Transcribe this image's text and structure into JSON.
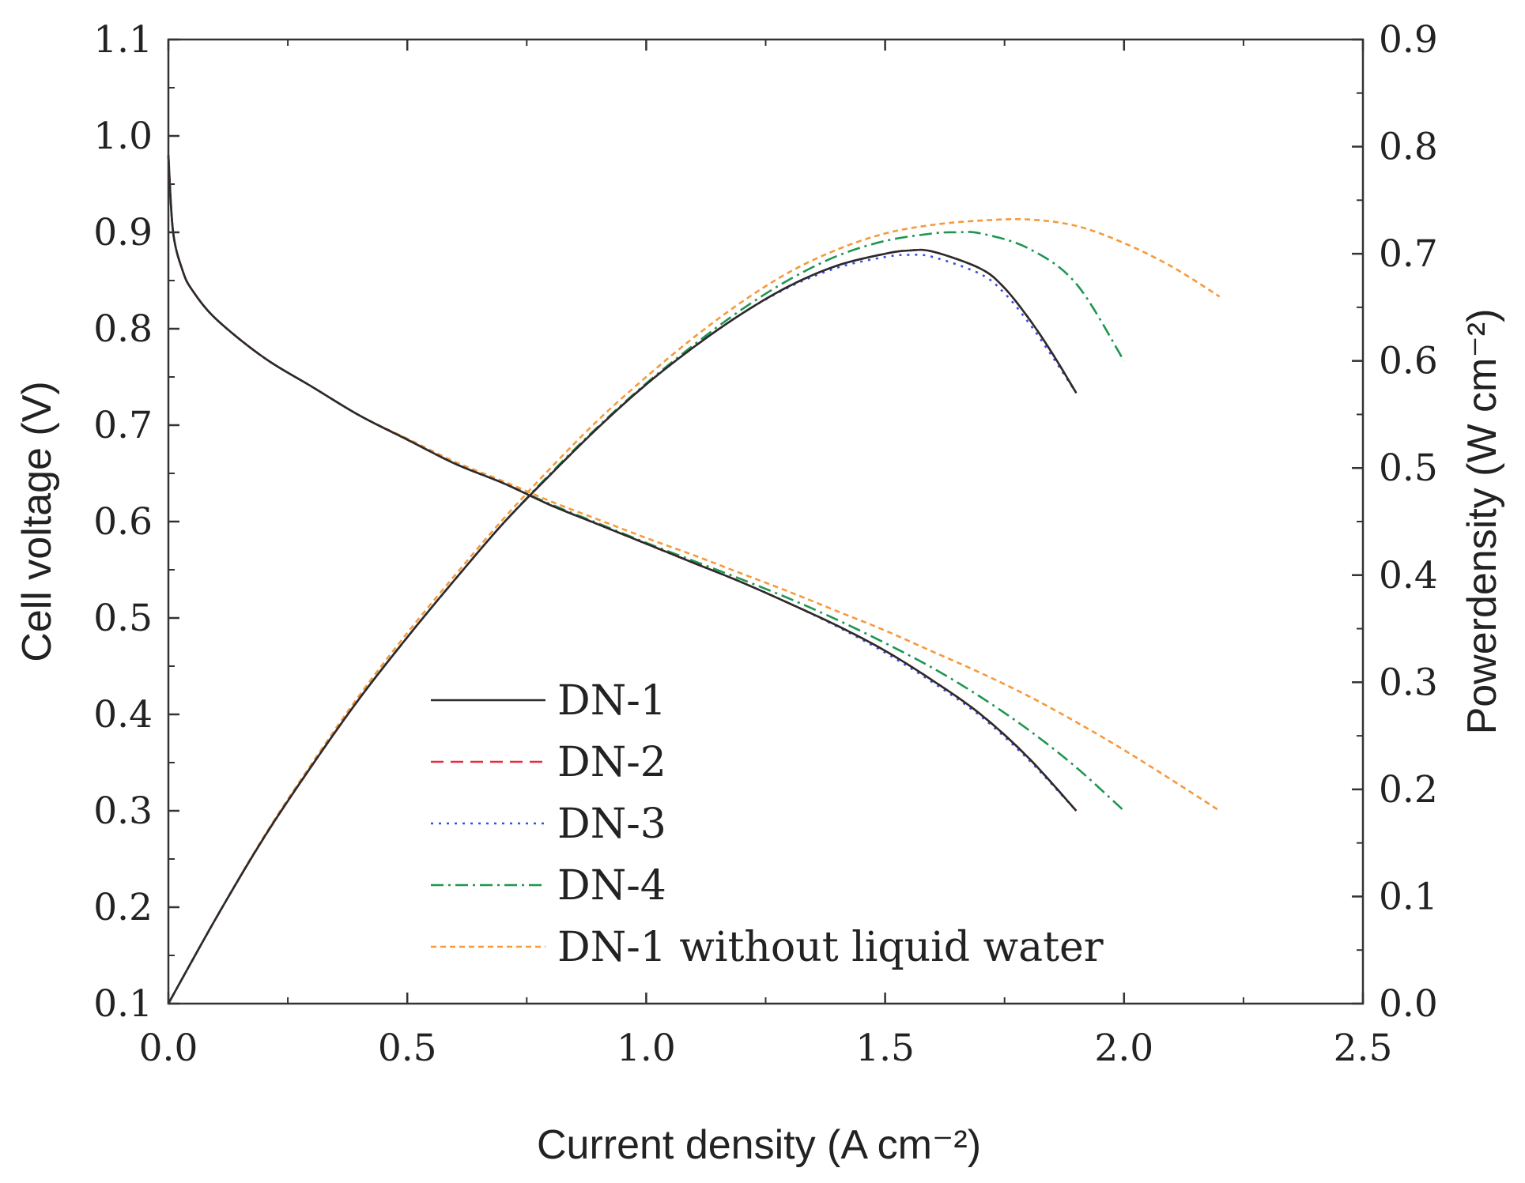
{
  "chart_data": {
    "type": "line",
    "title": "",
    "xlabel": "Current density (A cm⁻²)",
    "ylabel_left": "Cell voltage (V)",
    "ylabel_right": "Powerdensity (W cm⁻²)",
    "xlim": [
      0.0,
      2.5
    ],
    "ylim_left": [
      0.1,
      1.1
    ],
    "ylim_right": [
      0.0,
      0.9
    ],
    "x_ticks": [
      "0.0",
      "0.5",
      "1.0",
      "1.5",
      "2.0",
      "2.5"
    ],
    "y_left_ticks": [
      "0.1",
      "0.2",
      "0.3",
      "0.4",
      "0.5",
      "0.6",
      "0.7",
      "0.8",
      "0.9",
      "1.0",
      "1.1"
    ],
    "y_right_ticks": [
      "0.0",
      "0.1",
      "0.2",
      "0.3",
      "0.4",
      "0.5",
      "0.6",
      "0.7",
      "0.8",
      "0.9"
    ],
    "grid": false,
    "legend_position": "bottom-left",
    "series": [
      {
        "name": "DN-1",
        "color": "#2b2b2b",
        "dash": "solid",
        "polarization": {
          "x": [
            0.0,
            0.01,
            0.03,
            0.05,
            0.1,
            0.2,
            0.3,
            0.4,
            0.5,
            0.6,
            0.7,
            0.8,
            0.9,
            1.0,
            1.1,
            1.2,
            1.3,
            1.4,
            1.5,
            1.6,
            1.7,
            1.8,
            1.9
          ],
          "voltage": [
            0.98,
            0.9,
            0.86,
            0.84,
            0.81,
            0.77,
            0.74,
            0.71,
            0.685,
            0.66,
            0.64,
            0.617,
            0.597,
            0.577,
            0.557,
            0.537,
            0.515,
            0.492,
            0.466,
            0.435,
            0.4,
            0.355,
            0.3
          ]
        },
        "power": {
          "x": [
            0.0,
            0.1,
            0.2,
            0.3,
            0.4,
            0.5,
            0.6,
            0.7,
            0.8,
            0.9,
            1.0,
            1.1,
            1.2,
            1.3,
            1.4,
            1.5,
            1.55,
            1.6,
            1.7,
            1.75,
            1.8,
            1.85,
            1.9
          ],
          "density": [
            0.0,
            0.08,
            0.155,
            0.222,
            0.285,
            0.342,
            0.396,
            0.448,
            0.494,
            0.538,
            0.578,
            0.613,
            0.644,
            0.67,
            0.689,
            0.7,
            0.703,
            0.702,
            0.686,
            0.668,
            0.64,
            0.607,
            0.57
          ]
        }
      },
      {
        "name": "DN-2",
        "color": "#e8283c",
        "dash": "dashed",
        "polarization": {
          "x": [
            0.0,
            0.01,
            0.03,
            0.05,
            0.1,
            0.2,
            0.3,
            0.4,
            0.5,
            0.6,
            0.7,
            0.8,
            0.9,
            1.0,
            1.1,
            1.2,
            1.3,
            1.4,
            1.5,
            1.6,
            1.7,
            1.8,
            1.9
          ],
          "voltage": [
            0.98,
            0.9,
            0.86,
            0.84,
            0.81,
            0.77,
            0.74,
            0.71,
            0.685,
            0.66,
            0.64,
            0.617,
            0.597,
            0.577,
            0.557,
            0.537,
            0.515,
            0.492,
            0.466,
            0.435,
            0.4,
            0.355,
            0.3
          ]
        },
        "power": {
          "x": [
            0.0,
            0.1,
            0.2,
            0.3,
            0.4,
            0.5,
            0.6,
            0.7,
            0.8,
            0.9,
            1.0,
            1.1,
            1.2,
            1.3,
            1.4,
            1.5,
            1.55,
            1.6,
            1.7,
            1.75,
            1.8,
            1.85,
            1.9
          ],
          "density": [
            0.0,
            0.08,
            0.155,
            0.222,
            0.285,
            0.342,
            0.396,
            0.448,
            0.494,
            0.538,
            0.578,
            0.613,
            0.644,
            0.67,
            0.689,
            0.7,
            0.703,
            0.702,
            0.686,
            0.668,
            0.64,
            0.607,
            0.57
          ]
        }
      },
      {
        "name": "DN-3",
        "color": "#3a4ee0",
        "dash": "dotted",
        "polarization": {
          "x": [
            0.0,
            0.01,
            0.03,
            0.05,
            0.1,
            0.2,
            0.3,
            0.4,
            0.5,
            0.6,
            0.7,
            0.8,
            0.9,
            1.0,
            1.1,
            1.2,
            1.3,
            1.4,
            1.5,
            1.6,
            1.7,
            1.8,
            1.9
          ],
          "voltage": [
            0.98,
            0.9,
            0.86,
            0.84,
            0.81,
            0.77,
            0.74,
            0.71,
            0.685,
            0.66,
            0.64,
            0.617,
            0.597,
            0.577,
            0.557,
            0.537,
            0.515,
            0.491,
            0.464,
            0.433,
            0.398,
            0.353,
            0.3
          ]
        },
        "power": {
          "x": [
            0.0,
            0.1,
            0.2,
            0.3,
            0.4,
            0.5,
            0.6,
            0.7,
            0.8,
            0.9,
            1.0,
            1.1,
            1.2,
            1.3,
            1.4,
            1.5,
            1.55,
            1.6,
            1.7,
            1.75,
            1.8,
            1.85,
            1.9
          ],
          "density": [
            0.0,
            0.08,
            0.155,
            0.222,
            0.285,
            0.342,
            0.396,
            0.448,
            0.494,
            0.538,
            0.578,
            0.613,
            0.644,
            0.669,
            0.687,
            0.697,
            0.699,
            0.697,
            0.681,
            0.663,
            0.636,
            0.604,
            0.57
          ]
        }
      },
      {
        "name": "DN-4",
        "color": "#1e9650",
        "dash": "dashdot",
        "polarization": {
          "x": [
            0.0,
            0.01,
            0.03,
            0.05,
            0.1,
            0.2,
            0.3,
            0.4,
            0.5,
            0.6,
            0.7,
            0.8,
            0.9,
            1.0,
            1.1,
            1.2,
            1.3,
            1.4,
            1.5,
            1.6,
            1.7,
            1.8,
            1.9,
            2.0
          ],
          "voltage": [
            0.98,
            0.9,
            0.86,
            0.84,
            0.81,
            0.77,
            0.74,
            0.71,
            0.685,
            0.66,
            0.64,
            0.618,
            0.598,
            0.578,
            0.559,
            0.54,
            0.52,
            0.498,
            0.474,
            0.448,
            0.418,
            0.384,
            0.345,
            0.3
          ]
        },
        "power": {
          "x": [
            0.0,
            0.1,
            0.2,
            0.3,
            0.4,
            0.5,
            0.6,
            0.7,
            0.8,
            0.9,
            1.0,
            1.1,
            1.2,
            1.3,
            1.4,
            1.5,
            1.6,
            1.65,
            1.7,
            1.8,
            1.9,
            2.0
          ],
          "density": [
            0.0,
            0.08,
            0.155,
            0.222,
            0.285,
            0.342,
            0.396,
            0.448,
            0.495,
            0.539,
            0.579,
            0.615,
            0.648,
            0.676,
            0.698,
            0.712,
            0.719,
            0.72,
            0.719,
            0.705,
            0.672,
            0.6
          ]
        }
      },
      {
        "name": "DN-1 without liquid water",
        "color": "#f59a3c",
        "dash": "shortdash",
        "polarization": {
          "x": [
            0.0,
            0.01,
            0.03,
            0.05,
            0.1,
            0.2,
            0.3,
            0.4,
            0.5,
            0.6,
            0.7,
            0.8,
            0.9,
            1.0,
            1.1,
            1.2,
            1.3,
            1.4,
            1.5,
            1.6,
            1.7,
            1.8,
            1.9,
            2.0,
            2.1,
            2.2
          ],
          "voltage": [
            0.98,
            0.9,
            0.86,
            0.84,
            0.81,
            0.77,
            0.74,
            0.71,
            0.686,
            0.662,
            0.642,
            0.621,
            0.602,
            0.583,
            0.565,
            0.546,
            0.527,
            0.507,
            0.487,
            0.465,
            0.443,
            0.419,
            0.392,
            0.363,
            0.332,
            0.3
          ]
        },
        "power": {
          "x": [
            0.0,
            0.1,
            0.2,
            0.3,
            0.4,
            0.5,
            0.6,
            0.7,
            0.8,
            0.9,
            1.0,
            1.1,
            1.2,
            1.3,
            1.4,
            1.5,
            1.6,
            1.7,
            1.8,
            1.9,
            2.0,
            2.1,
            2.2
          ],
          "density": [
            0.0,
            0.08,
            0.156,
            0.224,
            0.288,
            0.346,
            0.4,
            0.452,
            0.5,
            0.545,
            0.585,
            0.622,
            0.655,
            0.683,
            0.704,
            0.719,
            0.727,
            0.731,
            0.732,
            0.726,
            0.71,
            0.688,
            0.66
          ]
        }
      }
    ]
  }
}
